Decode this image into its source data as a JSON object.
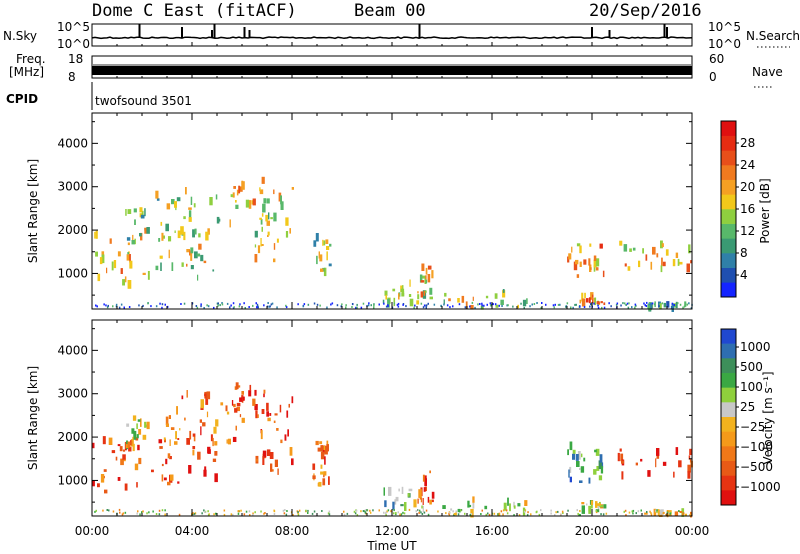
{
  "header": {
    "title": "Dome C East (fitACF)",
    "beam": "Beam 00",
    "date": "20/Sep/2016"
  },
  "strip": {
    "nsky_label": "N.Sky",
    "nsearch_label": "N.Search",
    "freq_label_1": "Freq.",
    "freq_label_2": "[MHz]",
    "nave_label": "Nave",
    "cpid_label": "CPID",
    "cpid_value": "twofsound 3501",
    "nsky_tick_top": "10^5",
    "nsky_tick_bottom": "10^0",
    "freq_tick_top": "18",
    "freq_tick_bottom": "8",
    "nave_tick_top": "60",
    "nave_tick_bottom": "0"
  },
  "chart_data": [
    {
      "type": "heatmap",
      "name": "power-panel",
      "ylabel": "Slant Range [km]",
      "yticks": [
        1000,
        2000,
        3000,
        4000
      ],
      "ylim": [
        180,
        4700
      ],
      "xlim_hours": [
        0,
        24
      ],
      "colorbar": {
        "label": "Power [dB]",
        "ticks": [
          "4",
          "8",
          "12",
          "16",
          "20",
          "24",
          "28"
        ],
        "range": [
          0,
          32
        ],
        "colors": [
          "#1424ff",
          "#1f4fb0",
          "#2f80a8",
          "#3a9a73",
          "#58b86a",
          "#8fcf3f",
          "#f2c81a",
          "#f5a023",
          "#f07a1f",
          "#e84f1a",
          "#e62c12",
          "#e01010"
        ]
      },
      "echo_regions": [
        {
          "t": [
            0.0,
            2.0
          ],
          "r": [
            700,
            2000
          ],
          "level": 0.55
        },
        {
          "t": [
            1.3,
            2.2
          ],
          "r": [
            1600,
            2500
          ],
          "level": 0.45
        },
        {
          "t": [
            2.0,
            5.0
          ],
          "r": [
            900,
            2000
          ],
          "level": 0.5
        },
        {
          "t": [
            2.5,
            6.0
          ],
          "r": [
            1800,
            3000
          ],
          "level": 0.45
        },
        {
          "t": [
            5.5,
            7.0
          ],
          "r": [
            2500,
            3200
          ],
          "level": 0.6
        },
        {
          "t": [
            6.5,
            8.0
          ],
          "r": [
            1200,
            3000
          ],
          "level": 0.5
        },
        {
          "t": [
            8.8,
            9.5
          ],
          "r": [
            900,
            1900
          ],
          "level": 0.4
        },
        {
          "t": [
            11.6,
            13.5
          ],
          "r": [
            300,
            800
          ],
          "level": 0.45
        },
        {
          "t": [
            13.0,
            13.6
          ],
          "r": [
            400,
            1200
          ],
          "level": 0.6
        },
        {
          "t": [
            14.0,
            17.5
          ],
          "r": [
            200,
            600
          ],
          "level": 0.5
        },
        {
          "t": [
            19.0,
            20.5
          ],
          "r": [
            900,
            1800
          ],
          "level": 0.65
        },
        {
          "t": [
            19.5,
            20.5
          ],
          "r": [
            300,
            500
          ],
          "level": 0.7
        },
        {
          "t": [
            21.0,
            24.0
          ],
          "r": [
            1100,
            1700
          ],
          "level": 0.6
        },
        {
          "t": [
            22.0,
            24.0
          ],
          "r": [
            200,
            300
          ],
          "level": 0.3
        }
      ]
    },
    {
      "type": "heatmap",
      "name": "velocity-panel",
      "ylabel": "Slant Range [km]",
      "yticks": [
        1000,
        2000,
        3000,
        4000
      ],
      "ylim": [
        180,
        4700
      ],
      "xlim_hours": [
        0,
        24
      ],
      "xticks": [
        "00:00",
        "04:00",
        "08:00",
        "12:00",
        "16:00",
        "20:00",
        "00:00"
      ],
      "xlabel": "Time UT",
      "colorbar": {
        "label": "Velocity [m s⁻¹]",
        "ticks": [
          "1000",
          "500",
          "100",
          "25",
          "−25",
          "−100",
          "−500",
          "−1000"
        ],
        "colors": [
          "#2048d0",
          "#2e6eb0",
          "#3d8f5a",
          "#3aa843",
          "#8fd03c",
          "#c8c8c8",
          "#f2b21e",
          "#f59a1a",
          "#f07818",
          "#e85a16",
          "#e63412",
          "#e01010"
        ]
      },
      "echo_regions": [
        {
          "t": [
            0.0,
            2.0
          ],
          "r": [
            700,
            2000
          ],
          "level": 0.8
        },
        {
          "t": [
            1.3,
            2.2
          ],
          "r": [
            1600,
            2500
          ],
          "level": 0.5
        },
        {
          "t": [
            2.0,
            5.0
          ],
          "r": [
            900,
            2000
          ],
          "level": 0.85
        },
        {
          "t": [
            2.5,
            6.0
          ],
          "r": [
            1800,
            3000
          ],
          "level": 0.75
        },
        {
          "t": [
            5.5,
            7.0
          ],
          "r": [
            2500,
            3200
          ],
          "level": 0.9
        },
        {
          "t": [
            6.5,
            8.0
          ],
          "r": [
            1200,
            3000
          ],
          "level": 0.85
        },
        {
          "t": [
            8.8,
            9.5
          ],
          "r": [
            900,
            1900
          ],
          "level": 0.75
        },
        {
          "t": [
            11.6,
            13.5
          ],
          "r": [
            300,
            800
          ],
          "level": 0.35
        },
        {
          "t": [
            13.0,
            13.6
          ],
          "r": [
            400,
            1200
          ],
          "level": 0.8
        },
        {
          "t": [
            14.0,
            17.5
          ],
          "r": [
            200,
            600
          ],
          "level": 0.45
        },
        {
          "t": [
            19.0,
            20.5
          ],
          "r": [
            900,
            1800
          ],
          "level": 0.3
        },
        {
          "t": [
            19.5,
            20.5
          ],
          "r": [
            300,
            500
          ],
          "level": 0.5
        },
        {
          "t": [
            21.0,
            24.0
          ],
          "r": [
            1100,
            1700
          ],
          "level": 0.85
        },
        {
          "t": [
            22.0,
            24.0
          ],
          "r": [
            200,
            300
          ],
          "level": 0.6
        }
      ]
    }
  ]
}
